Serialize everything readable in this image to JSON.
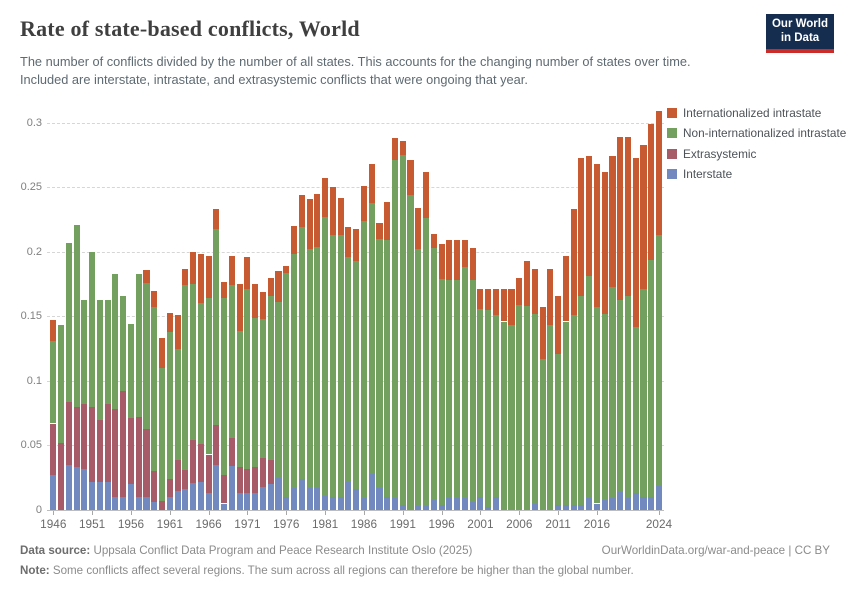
{
  "header": {
    "title": "Rate of state-based conflicts, World",
    "subtitle": "The number of conflicts divided by the number of all states. This accounts for the changing number of states over time. Included are interstate, intrastate, and extrasystemic conflicts that were ongoing that year.",
    "logo": {
      "line1": "Our World",
      "line2": "in Data",
      "bg_color": "#152d4f",
      "bar_color": "#cb2b29"
    }
  },
  "legend": [
    {
      "label": "Internationalized intrastate",
      "color": "#c75a31"
    },
    {
      "label": "Non-internationalized intrastate",
      "color": "#73a05f"
    },
    {
      "label": "Extrasystemic",
      "color": "#a75a68"
    },
    {
      "label": "Interstate",
      "color": "#7189be"
    }
  ],
  "chart_data": {
    "type": "bar",
    "stacked": true,
    "title": "Rate of state-based conflicts, World",
    "xlabel": "",
    "ylabel": "",
    "x_start": 1946,
    "x_end": 2024,
    "ylim": [
      0,
      0.31
    ],
    "grid": "dashed horizontal",
    "legend_position": "right-top",
    "yticks": [
      {
        "value": 0,
        "label": "0"
      },
      {
        "value": 0.05,
        "label": "0.05"
      },
      {
        "value": 0.1,
        "label": "0.1"
      },
      {
        "value": 0.15,
        "label": "0.15"
      },
      {
        "value": 0.2,
        "label": "0.2"
      },
      {
        "value": 0.25,
        "label": "0.25"
      },
      {
        "value": 0.3,
        "label": "0.3"
      }
    ],
    "xticks": [
      1946,
      1951,
      1956,
      1961,
      1966,
      1971,
      1976,
      1981,
      1986,
      1991,
      1996,
      2001,
      2006,
      2011,
      2016,
      2024
    ],
    "series": [
      {
        "name": "Interstate",
        "color": "#7189be",
        "values": [
          0.027,
          0,
          0.035,
          0.033,
          0.032,
          0.022,
          0.022,
          0.022,
          0.01,
          0.01,
          0.02,
          0.01,
          0.01,
          0.006,
          0,
          0.01,
          0.015,
          0.016,
          0.021,
          0.022,
          0.013,
          0.035,
          0.005,
          0.034,
          0.013,
          0.013,
          0.013,
          0.018,
          0.02,
          0.025,
          0.01,
          0.017,
          0.024,
          0.017,
          0.017,
          0.011,
          0.01,
          0.01,
          0.022,
          0.016,
          0.009,
          0.028,
          0.017,
          0.01,
          0.009,
          0.004,
          0,
          0.003,
          0.003,
          0.008,
          0.004,
          0.009,
          0.009,
          0.009,
          0.006,
          0.01,
          0.002,
          0.01,
          0,
          0,
          0,
          0,
          0.005,
          0,
          0,
          0.004,
          0.004,
          0.004,
          0.004,
          0.009,
          0.005,
          0.008,
          0.009,
          0.014,
          0.009,
          0.013,
          0.01,
          0.01,
          0.019
        ]
      },
      {
        "name": "Extrasystemic",
        "color": "#a75a68",
        "values": [
          0.04,
          0.052,
          0.049,
          0.047,
          0.05,
          0.058,
          0.048,
          0.06,
          0.068,
          0.082,
          0.051,
          0.062,
          0.053,
          0.024,
          0.007,
          0.014,
          0.024,
          0.015,
          0.033,
          0.029,
          0.03,
          0.031,
          0.022,
          0.022,
          0.02,
          0.019,
          0.02,
          0.022,
          0.019,
          0,
          0,
          0,
          0,
          0,
          0,
          0,
          0,
          0,
          0,
          0,
          0,
          0,
          0,
          0,
          0,
          0,
          0,
          0,
          0,
          0,
          0,
          0,
          0,
          0,
          0,
          0,
          0,
          0,
          0,
          0,
          0,
          0,
          0,
          0,
          0,
          0,
          0,
          0,
          0,
          0,
          0,
          0,
          0,
          0,
          0,
          0,
          0,
          0,
          0
        ]
      },
      {
        "name": "Non-internationalized intrastate",
        "color": "#73a05f",
        "values": [
          0.064,
          0.091,
          0.123,
          0.141,
          0.081,
          0.12,
          0.093,
          0.081,
          0.105,
          0.074,
          0.073,
          0.111,
          0.113,
          0.127,
          0.103,
          0.114,
          0.086,
          0.143,
          0.121,
          0.109,
          0.121,
          0.152,
          0.137,
          0.118,
          0.106,
          0.139,
          0.116,
          0.108,
          0.127,
          0.136,
          0.174,
          0.181,
          0.195,
          0.185,
          0.187,
          0.216,
          0.203,
          0.203,
          0.174,
          0.177,
          0.215,
          0.21,
          0.193,
          0.199,
          0.262,
          0.271,
          0.244,
          0.199,
          0.223,
          0.195,
          0.175,
          0.169,
          0.169,
          0.179,
          0.172,
          0.146,
          0.153,
          0.141,
          0.146,
          0.143,
          0.159,
          0.158,
          0.147,
          0.117,
          0.143,
          0.117,
          0.142,
          0.147,
          0.162,
          0.172,
          0.152,
          0.144,
          0.164,
          0.149,
          0.157,
          0.129,
          0.161,
          0.184,
          0.194
        ]
      },
      {
        "name": "Internationalized intrastate",
        "color": "#c75a31",
        "values": [
          0.016,
          0,
          0,
          0,
          0,
          0,
          0,
          0,
          0,
          0,
          0,
          0,
          0.01,
          0.013,
          0.023,
          0.015,
          0.026,
          0.013,
          0.025,
          0.038,
          0.033,
          0.015,
          0.013,
          0.023,
          0.036,
          0.025,
          0.026,
          0.021,
          0.014,
          0.024,
          0.005,
          0.022,
          0.025,
          0.039,
          0.041,
          0.03,
          0.037,
          0.029,
          0.023,
          0.025,
          0.027,
          0.03,
          0.012,
          0.03,
          0.017,
          0.011,
          0.027,
          0.032,
          0.036,
          0.011,
          0.027,
          0.031,
          0.031,
          0.021,
          0.025,
          0.015,
          0.016,
          0.02,
          0.025,
          0.028,
          0.021,
          0.035,
          0.035,
          0.04,
          0.044,
          0.045,
          0.051,
          0.082,
          0.107,
          0.093,
          0.111,
          0.11,
          0.101,
          0.126,
          0.123,
          0.131,
          0.112,
          0.105,
          0.096
        ]
      }
    ]
  },
  "footer": {
    "data_source_label": "Data source:",
    "data_source_text": " Uppsala Conflict Data Program and Peace Research Institute Oslo (2025)",
    "link": "OurWorldinData.org/war-and-peace | CC BY",
    "note_label": "Note:",
    "note_text": " Some conflicts affect several regions. The sum across all regions can therefore be higher than the global number."
  }
}
